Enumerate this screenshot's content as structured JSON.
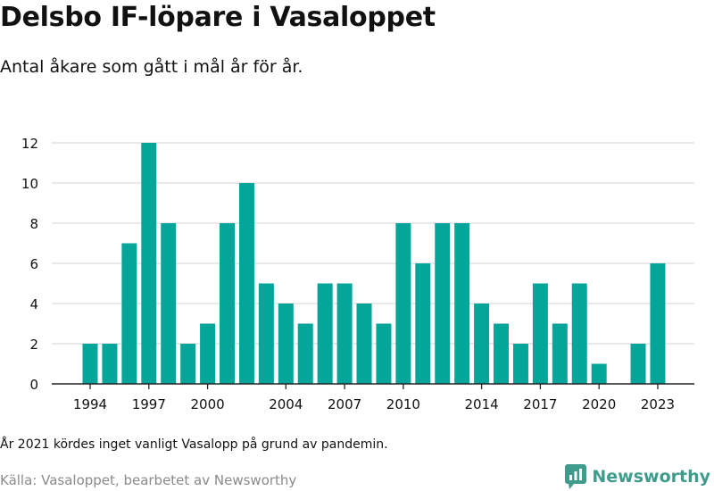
{
  "title": "Delsbo IF-löpare i Vasaloppet",
  "subtitle": "Antal åkare som gått i mål år för år.",
  "note": "År 2021 kördes inget vanligt Vasalopp på grund av pandemin.",
  "source": "Källa: Vasaloppet, bearbetet av Newsworthy",
  "brand": {
    "name": "Newsworthy",
    "icon": "newsworthy-logo-icon"
  },
  "colors": {
    "bar": "#05a59a",
    "grid": "#dcdcdc",
    "axis": "#222222",
    "text": "#111111",
    "brand": "#3f9c8c"
  },
  "chart_data": {
    "type": "bar",
    "x": [
      1994,
      1995,
      1996,
      1997,
      1998,
      1999,
      2000,
      2001,
      2002,
      2003,
      2004,
      2005,
      2006,
      2007,
      2008,
      2009,
      2010,
      2011,
      2012,
      2013,
      2014,
      2015,
      2016,
      2017,
      2018,
      2019,
      2020,
      2021,
      2022,
      2023
    ],
    "values": [
      2,
      2,
      7,
      12,
      8,
      2,
      3,
      8,
      10,
      5,
      4,
      3,
      5,
      5,
      4,
      3,
      8,
      6,
      8,
      8,
      4,
      3,
      2,
      5,
      3,
      5,
      1,
      null,
      2,
      6
    ],
    "x_tick_labels": [
      1994,
      1997,
      2000,
      2004,
      2007,
      2010,
      2014,
      2017,
      2020,
      2023
    ],
    "y_ticks": [
      0,
      2,
      4,
      6,
      8,
      10,
      12
    ],
    "ylim": [
      0,
      12
    ],
    "xlabel": "",
    "ylabel": "",
    "grid": true
  }
}
